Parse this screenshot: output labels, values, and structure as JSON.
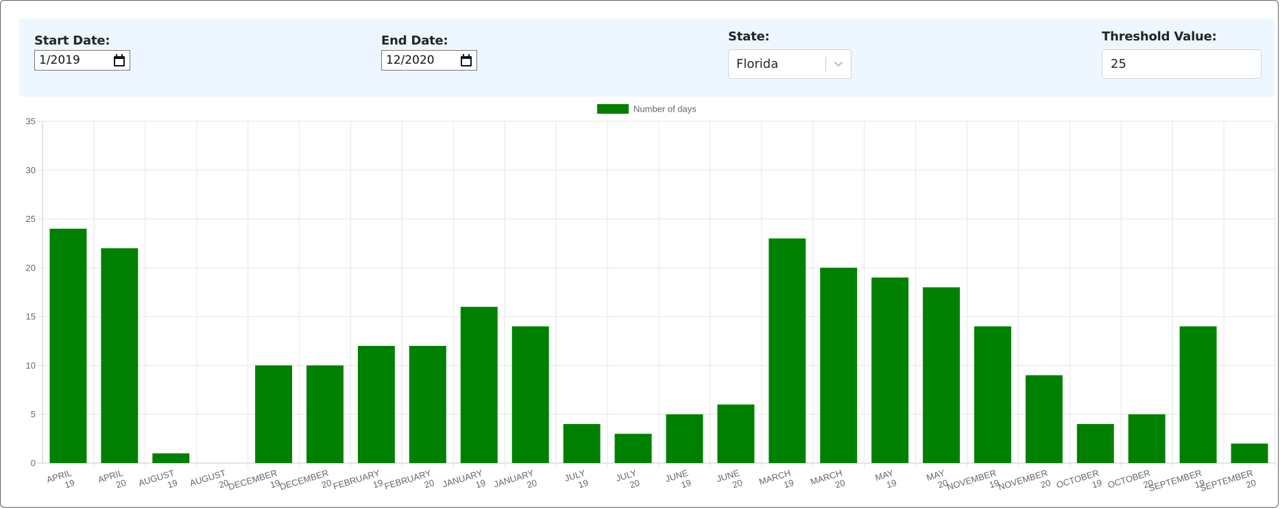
{
  "filters": {
    "start_date": {
      "label": "Start Date:",
      "value": "1/2019"
    },
    "end_date": {
      "label": "End Date:",
      "value": "12/2020"
    },
    "state": {
      "label": "State:",
      "value": "Florida"
    },
    "threshold": {
      "label": "Threshold Value:",
      "value": "25"
    }
  },
  "icons": {
    "date_picker": "calendar-icon",
    "dropdown": "chevron-down-icon"
  },
  "chart_data": {
    "type": "bar",
    "categories": [
      [
        "APRIL",
        "19"
      ],
      [
        "APRIL",
        "20"
      ],
      [
        "AUGUST",
        "19"
      ],
      [
        "AUGUST",
        "20"
      ],
      [
        "DECEMBER",
        "19"
      ],
      [
        "DECEMBER",
        "20"
      ],
      [
        "FEBRUARY",
        "19"
      ],
      [
        "FEBRUARY",
        "20"
      ],
      [
        "JANUARY",
        "19"
      ],
      [
        "JANUARY",
        "20"
      ],
      [
        "JULY",
        "19"
      ],
      [
        "JULY",
        "20"
      ],
      [
        "JUNE",
        "19"
      ],
      [
        "JUNE",
        "20"
      ],
      [
        "MARCH",
        "19"
      ],
      [
        "MARCH",
        "20"
      ],
      [
        "MAY",
        "19"
      ],
      [
        "MAY",
        "20"
      ],
      [
        "NOVEMBER",
        "19"
      ],
      [
        "NOVEMBER",
        "20"
      ],
      [
        "OCTOBER",
        "19"
      ],
      [
        "OCTOBER",
        "20"
      ],
      [
        "SEPTEMBER",
        "19"
      ],
      [
        "SEPTEMBER",
        "20"
      ]
    ],
    "series": [
      {
        "name": "Number of days",
        "color": "#008000",
        "values": [
          24,
          22,
          1,
          0,
          10,
          10,
          12,
          12,
          16,
          14,
          4,
          3,
          5,
          6,
          23,
          20,
          19,
          18,
          14,
          9,
          4,
          5,
          14,
          2
        ]
      }
    ],
    "ylim": [
      0,
      35
    ],
    "yticks": [
      0,
      5,
      10,
      15,
      20,
      25,
      30,
      35
    ],
    "grid": true,
    "legend": "top-center",
    "title": "",
    "xlabel": "",
    "ylabel": ""
  }
}
